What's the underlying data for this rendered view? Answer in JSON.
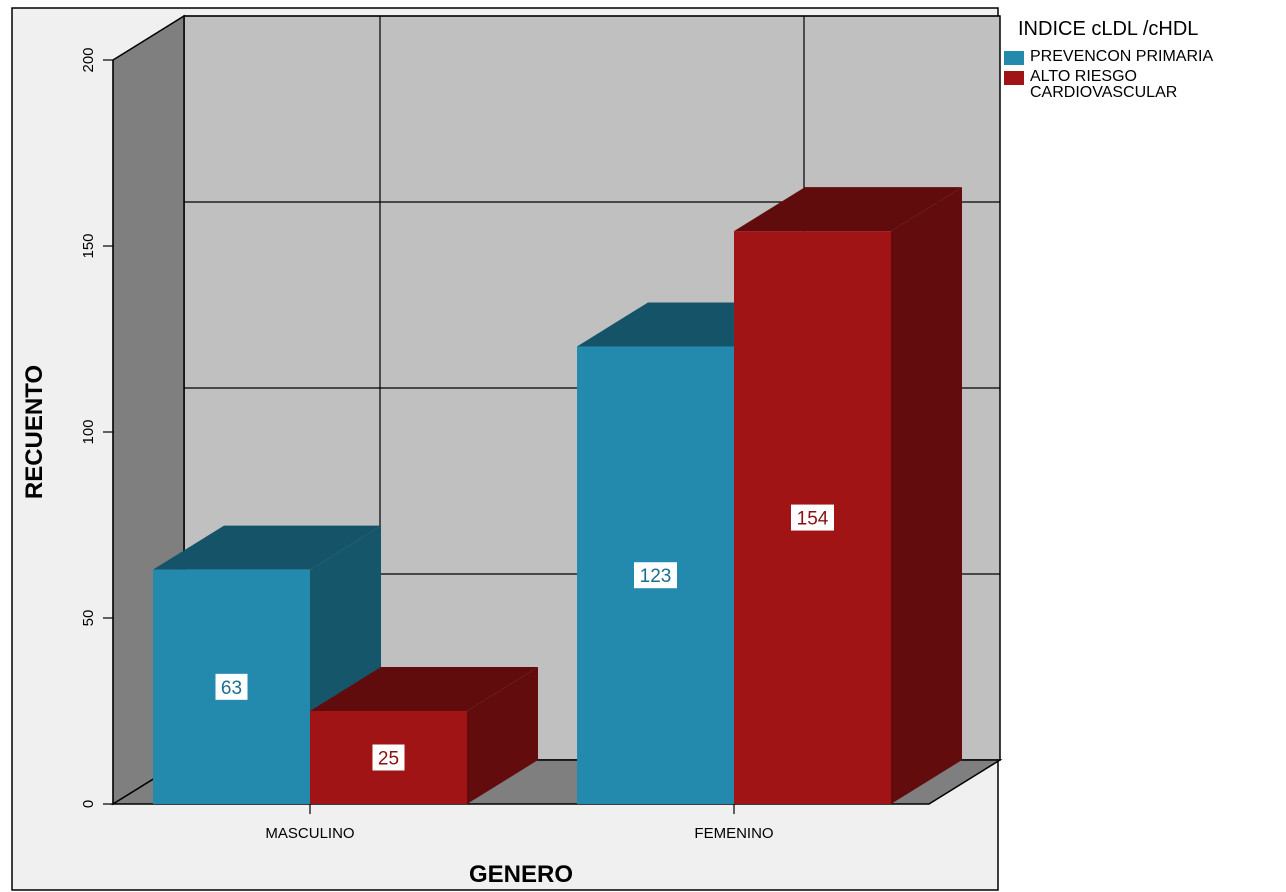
{
  "chart_data": {
    "type": "bar",
    "style": "3d-clustered",
    "categories": [
      "MASCULINO",
      "FEMENINO"
    ],
    "series": [
      {
        "name": "PREVENCON PRIMARIA",
        "values": [
          63,
          123
        ],
        "color": "#238aad",
        "label_color": "#1a6f8c"
      },
      {
        "name": "ALTO RIESGO CARDIOVASCULAR",
        "values": [
          25,
          154
        ],
        "color": "#a01416",
        "label_color": "#8a1012"
      }
    ],
    "xlabel": "GENERO",
    "ylabel": "RECUENTO",
    "ylim": [
      0,
      200
    ],
    "yticks": [
      0,
      50,
      100,
      150,
      200
    ],
    "legend_title": "INDICE cLDL /cHDL",
    "legend_position": "top-right",
    "grid": true,
    "data_labels": true
  }
}
